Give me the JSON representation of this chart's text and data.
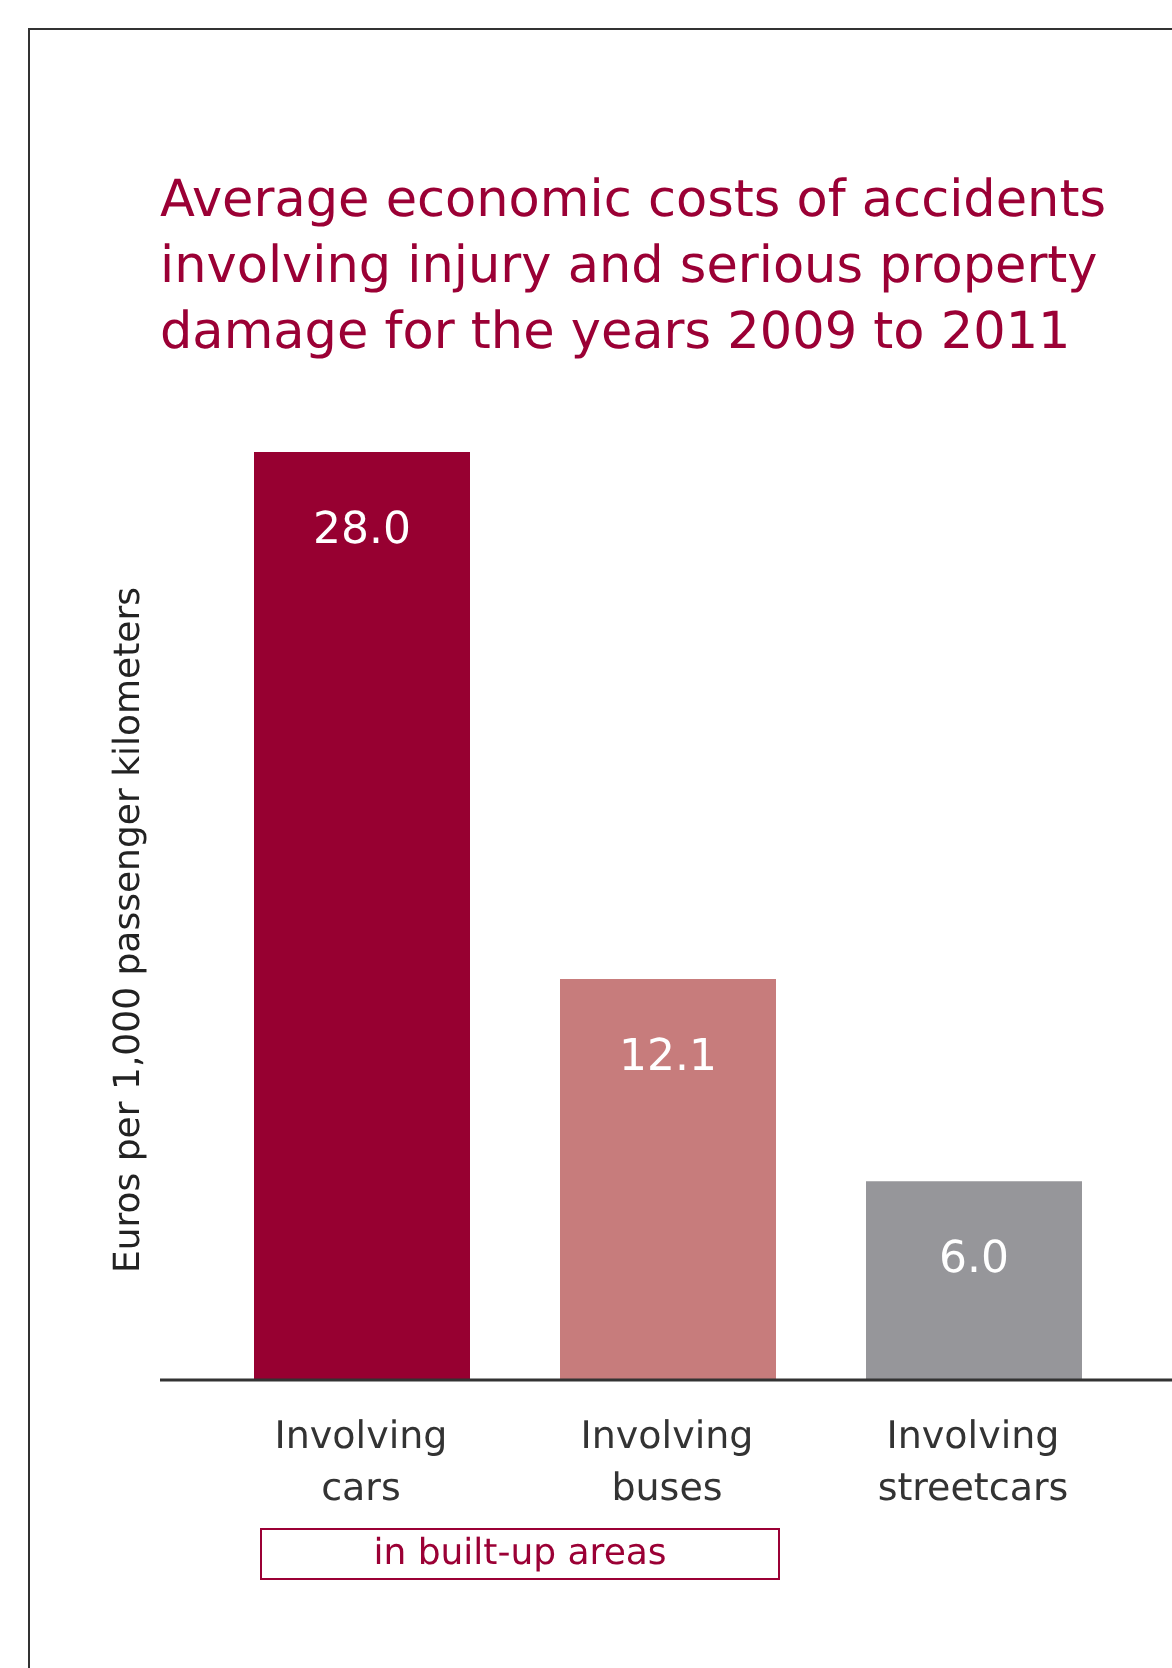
{
  "chart_data": {
    "type": "bar",
    "title": "Average economic costs of accidents involving injury and serious property damage for the years 2009 to 2011",
    "ylabel": "Euros per 1,000 passenger kilometers",
    "categories": [
      "Involving cars",
      "Involving buses",
      "Involving streetcars"
    ],
    "values": [
      28.0,
      12.1,
      6.0
    ],
    "value_labels": [
      "28.0",
      "12.1",
      "6.0"
    ],
    "colors": [
      "#970031",
      "#c77c7c",
      "#96969a"
    ],
    "annotations": [
      "in built-up areas"
    ]
  }
}
